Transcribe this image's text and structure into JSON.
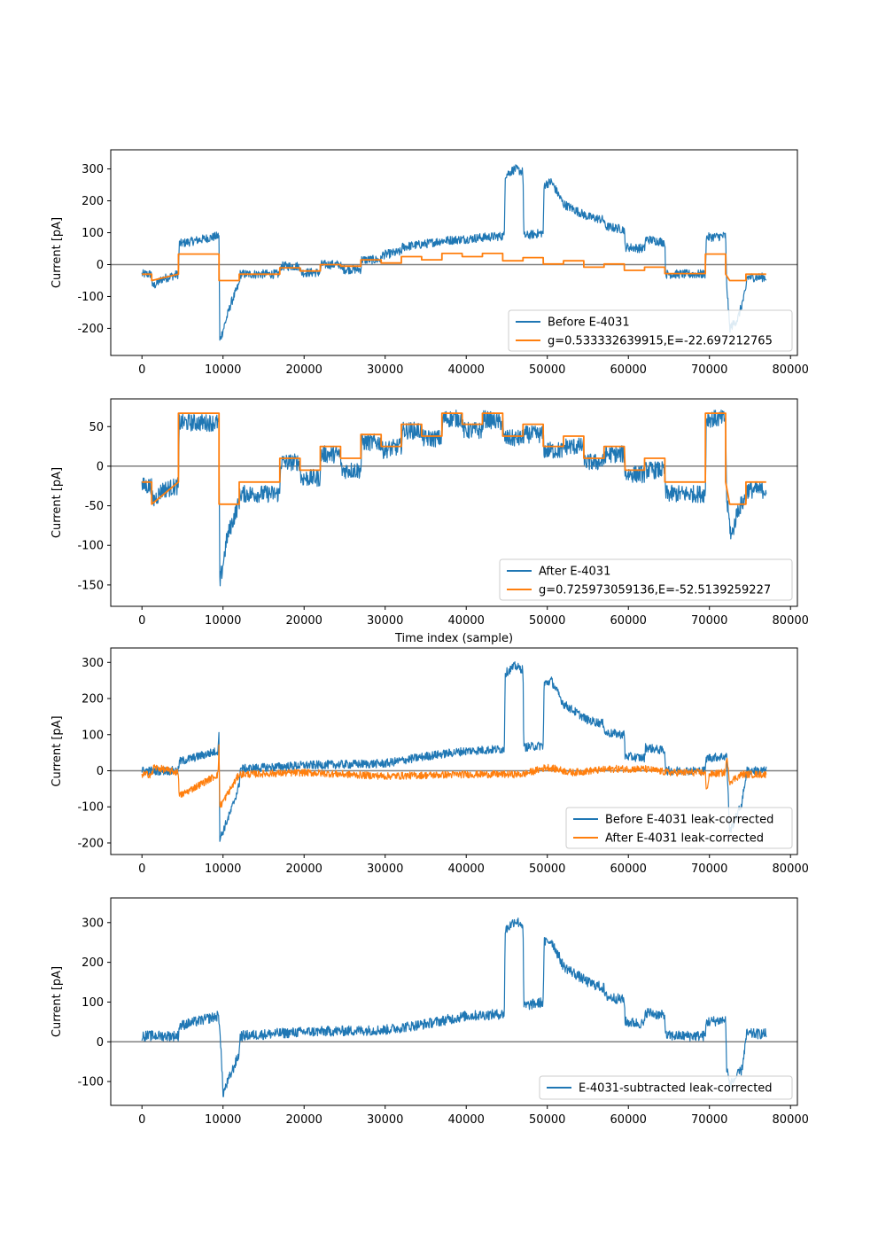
{
  "colors": {
    "blue": "#1f77b4",
    "orange": "#ff7f0e",
    "zero_line": "#808080"
  },
  "chart_data": [
    {
      "type": "line",
      "ylabel": "Current [pA]",
      "xlabel": "",
      "xlim": [
        -3850,
        80850
      ],
      "ylim": [
        -285,
        360
      ],
      "xticks": [
        0,
        10000,
        20000,
        30000,
        40000,
        50000,
        60000,
        70000,
        80000
      ],
      "yticks": [
        -200,
        -100,
        0,
        100,
        200,
        300
      ],
      "grid": false,
      "zero_line": true,
      "legend_position": "lower-right",
      "series": [
        {
          "name": "Before E-4031",
          "color": "#1f77b4",
          "noise": 14,
          "x": [
            0,
            1200,
            1300,
            2500,
            4500,
            4600,
            9500,
            9600,
            11000,
            12000,
            12100,
            17000,
            17100,
            19500,
            19600,
            22000,
            22100,
            24500,
            24600,
            27000,
            27100,
            29500,
            29600,
            32000,
            32100,
            35000,
            37000,
            40000,
            42000,
            44700,
            44800,
            46000,
            47000,
            47100,
            49500,
            49600,
            50500,
            52000,
            55000,
            57000,
            57100,
            59500,
            59600,
            62000,
            62100,
            64500,
            64600,
            69500,
            69600,
            72000,
            72100,
            72500,
            73500,
            74500,
            74600,
            77000
          ],
          "y": [
            -30,
            -30,
            -70,
            -45,
            -30,
            65,
            90,
            -240,
            -120,
            -60,
            -30,
            -30,
            -5,
            -5,
            -25,
            -25,
            0,
            0,
            -15,
            -15,
            15,
            15,
            30,
            40,
            55,
            65,
            75,
            80,
            85,
            90,
            280,
            300,
            290,
            90,
            100,
            250,
            260,
            190,
            150,
            140,
            120,
            110,
            55,
            50,
            80,
            70,
            -30,
            -30,
            85,
            90,
            -50,
            -200,
            -170,
            -80,
            -40,
            -40
          ]
        },
        {
          "name": "g=0.533332639915,E=-22.697212765",
          "color": "#ff7f0e",
          "noise": 0,
          "x": [
            0,
            1200,
            1201,
            4500,
            4501,
            9500,
            9501,
            12000,
            12001,
            17000,
            17001,
            19500,
            19501,
            22000,
            22001,
            24500,
            24501,
            27000,
            27001,
            29500,
            29501,
            32000,
            32001,
            34500,
            34501,
            37000,
            37001,
            39500,
            39501,
            42000,
            42001,
            44500,
            44501,
            47000,
            47001,
            49500,
            49501,
            52000,
            52001,
            54500,
            54501,
            57000,
            57001,
            59500,
            59501,
            62000,
            62001,
            64500,
            64501,
            69500,
            69501,
            72000,
            72001,
            72500,
            74500,
            74501,
            77000
          ],
          "y": [
            -30,
            -30,
            -50,
            -30,
            33,
            33,
            -50,
            -50,
            -30,
            -30,
            -10,
            -10,
            -20,
            -20,
            0,
            0,
            -5,
            -5,
            15,
            15,
            5,
            5,
            25,
            25,
            15,
            15,
            35,
            35,
            25,
            25,
            35,
            35,
            12,
            12,
            22,
            22,
            2,
            2,
            12,
            12,
            -8,
            -8,
            2,
            2,
            -18,
            -18,
            -8,
            -8,
            -28,
            -28,
            33,
            33,
            -30,
            -50,
            -50,
            -30,
            -30
          ]
        }
      ]
    },
    {
      "type": "line",
      "ylabel": "Current [pA]",
      "xlabel": "Time index (sample)",
      "xlim": [
        -3850,
        80850
      ],
      "ylim": [
        -177,
        85
      ],
      "xticks": [
        0,
        10000,
        20000,
        30000,
        40000,
        50000,
        60000,
        70000,
        80000
      ],
      "yticks": [
        -150,
        -100,
        -50,
        0,
        50
      ],
      "grid": false,
      "zero_line": true,
      "legend_position": "lower-right",
      "series": [
        {
          "name": "After E-4031",
          "color": "#1f77b4",
          "noise": 11,
          "x": [
            0,
            1200,
            1300,
            2500,
            4500,
            4600,
            9500,
            9600,
            10500,
            12000,
            12100,
            17000,
            17100,
            19500,
            19600,
            22000,
            22100,
            24500,
            24600,
            27000,
            27100,
            29500,
            29600,
            32000,
            32100,
            34500,
            34600,
            37000,
            37100,
            39500,
            39600,
            42000,
            42100,
            44500,
            44600,
            47000,
            47100,
            49500,
            49600,
            52000,
            52100,
            54500,
            54600,
            57000,
            57100,
            59500,
            59600,
            62000,
            62100,
            64500,
            64600,
            69500,
            69600,
            72000,
            72100,
            72700,
            73500,
            74500,
            74600,
            77000
          ],
          "y": [
            -25,
            -25,
            -45,
            -30,
            -25,
            55,
            55,
            -150,
            -90,
            -45,
            -35,
            -35,
            5,
            5,
            -15,
            -15,
            15,
            15,
            -5,
            -5,
            30,
            30,
            20,
            25,
            45,
            45,
            35,
            35,
            60,
            60,
            45,
            45,
            60,
            55,
            35,
            35,
            40,
            40,
            20,
            20,
            25,
            25,
            5,
            5,
            15,
            15,
            -10,
            -10,
            -5,
            -5,
            -35,
            -35,
            60,
            60,
            -40,
            -90,
            -55,
            -40,
            -30,
            -30
          ]
        },
        {
          "name": "g=0.725973059136,E=-52.5139259227",
          "color": "#ff7f0e",
          "noise": 0,
          "x": [
            0,
            1200,
            1201,
            4500,
            4501,
            9500,
            9501,
            12000,
            12001,
            17000,
            17001,
            19500,
            19501,
            22000,
            22001,
            24500,
            24501,
            27000,
            27001,
            29500,
            29501,
            32000,
            32001,
            34500,
            34501,
            37000,
            37001,
            39500,
            39501,
            42000,
            42001,
            44500,
            44501,
            47000,
            47001,
            49500,
            49501,
            52000,
            52001,
            54500,
            54501,
            57000,
            57001,
            59500,
            59601,
            62000,
            62001,
            64500,
            64501,
            69500,
            69501,
            72000,
            72001,
            72500,
            74500,
            74501,
            77000
          ],
          "y": [
            -20,
            -20,
            -48,
            -20,
            67,
            67,
            -48,
            -48,
            -20,
            -20,
            10,
            10,
            -5,
            -5,
            25,
            25,
            10,
            10,
            40,
            40,
            25,
            25,
            53,
            53,
            38,
            38,
            67,
            67,
            53,
            53,
            67,
            67,
            38,
            38,
            53,
            53,
            25,
            25,
            38,
            38,
            10,
            10,
            25,
            25,
            -5,
            -5,
            10,
            10,
            -20,
            -20,
            67,
            67,
            -20,
            -48,
            -48,
            -20,
            -20
          ]
        }
      ]
    },
    {
      "type": "line",
      "ylabel": "Current [pA]",
      "xlabel": "",
      "xlim": [
        -3850,
        80850
      ],
      "ylim": [
        -232,
        340
      ],
      "xticks": [
        0,
        10000,
        20000,
        30000,
        40000,
        50000,
        60000,
        70000,
        80000
      ],
      "yticks": [
        -200,
        -100,
        0,
        100,
        200,
        300
      ],
      "grid": false,
      "zero_line": true,
      "legend_position": "lower-right",
      "series": [
        {
          "name": "Before E-4031 leak-corrected",
          "color": "#1f77b4",
          "noise": 12,
          "x": [
            0,
            4500,
            4600,
            9400,
            9500,
            9600,
            11000,
            12000,
            12100,
            20000,
            30000,
            35000,
            40000,
            44700,
            44800,
            46000,
            47000,
            47100,
            49500,
            49600,
            50500,
            52000,
            55000,
            57000,
            57100,
            59500,
            59600,
            62000,
            62100,
            64500,
            64600,
            69500,
            69600,
            72000,
            72100,
            72500,
            74000,
            74600,
            77000
          ],
          "y": [
            0,
            0,
            25,
            55,
            120,
            -190,
            -110,
            -40,
            5,
            15,
            20,
            40,
            55,
            60,
            270,
            290,
            280,
            65,
            70,
            240,
            250,
            185,
            140,
            130,
            105,
            100,
            40,
            35,
            65,
            55,
            0,
            0,
            35,
            40,
            50,
            -170,
            -90,
            0,
            0
          ]
        },
        {
          "name": "After E-4031 leak-corrected",
          "color": "#ff7f0e",
          "noise": 10,
          "x": [
            0,
            1300,
            1400,
            4500,
            4600,
            9400,
            9500,
            9600,
            12000,
            20000,
            30000,
            40000,
            47000,
            50000,
            53000,
            58000,
            62000,
            65000,
            69500,
            69600,
            70000,
            72000,
            72100,
            72500,
            74000,
            77000
          ],
          "y": [
            -10,
            -10,
            10,
            -5,
            -70,
            -10,
            80,
            -100,
            -10,
            -5,
            -15,
            -10,
            -10,
            10,
            -5,
            5,
            5,
            -5,
            -5,
            -60,
            -10,
            -5,
            40,
            -30,
            -10,
            -10
          ]
        }
      ]
    },
    {
      "type": "line",
      "ylabel": "Current [pA]",
      "xlabel": "",
      "xlim": [
        -3850,
        80850
      ],
      "ylim": [
        -160,
        362
      ],
      "xticks": [
        0,
        10000,
        20000,
        30000,
        40000,
        50000,
        60000,
        70000,
        80000
      ],
      "yticks": [
        -100,
        0,
        100,
        200,
        300
      ],
      "grid": false,
      "zero_line": true,
      "legend_position": "lower-right",
      "series": [
        {
          "name": "E-4031-subtracted leak-corrected",
          "color": "#1f77b4",
          "noise": 13,
          "x": [
            0,
            4500,
            4600,
            9400,
            9600,
            10000,
            11000,
            12000,
            12100,
            20000,
            30000,
            35000,
            40000,
            44700,
            44800,
            46000,
            47000,
            47100,
            49500,
            49600,
            50500,
            52000,
            55000,
            57000,
            57100,
            59500,
            59600,
            62000,
            62100,
            64500,
            64600,
            69500,
            69600,
            72000,
            72100,
            72500,
            74000,
            74600,
            77000
          ],
          "y": [
            15,
            15,
            40,
            65,
            40,
            -130,
            -80,
            -30,
            15,
            25,
            30,
            45,
            65,
            70,
            280,
            305,
            295,
            90,
            100,
            250,
            255,
            190,
            150,
            135,
            115,
            105,
            50,
            45,
            75,
            65,
            15,
            15,
            50,
            55,
            -60,
            -110,
            -70,
            20,
            20
          ]
        }
      ]
    }
  ]
}
